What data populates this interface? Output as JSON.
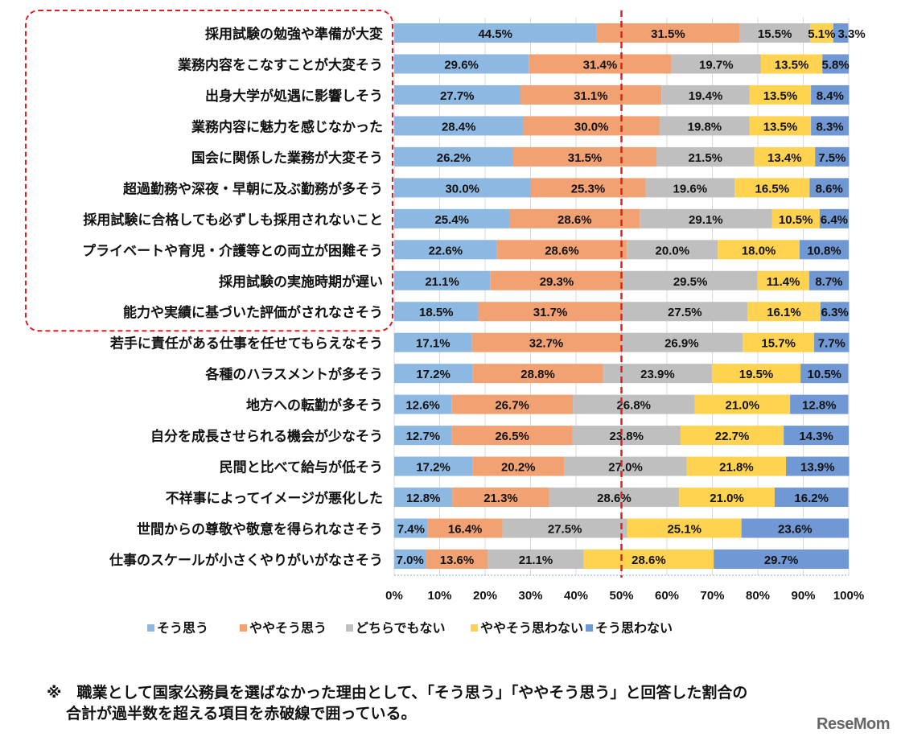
{
  "chart_data": {
    "type": "bar",
    "orientation": "horizontal",
    "stacked": "percent",
    "categories": [
      "採用試験の勉強や準備が大変",
      "業務内容をこなすことが大変そう",
      "出身大学が処遇に影響しそう",
      "業務内容に魅力を感じなかった",
      "国会に関係した業務が大変そう",
      "超過勤務や深夜・早朝に及ぶ勤務が多そう",
      "採用試験に合格しても必ずしも採用されないこと",
      "プライベートや育児・介護等との両立が困難そう",
      "採用試験の実施時期が遅い",
      "能力や実績に基づいた評価がされなさそう",
      "若手に責任がある仕事を任せてもらえなそう",
      "各種のハラスメントが多そう",
      "地方への転勤が多そう",
      "自分を成長させられる機会が少なそう",
      "民間と比べて給与が低そう",
      "不祥事によってイメージが悪化した",
      "世間からの尊敬や敬意を得られなさそう",
      "仕事のスケールが小さくやりがいがなさそう"
    ],
    "series": [
      {
        "name": "そう思う",
        "color": "#8cb8e2",
        "values": [
          44.5,
          29.6,
          27.7,
          28.4,
          26.2,
          30.0,
          25.4,
          22.6,
          21.1,
          18.5,
          17.1,
          17.2,
          12.6,
          12.7,
          17.2,
          12.8,
          7.4,
          7.0
        ]
      },
      {
        "name": "ややそう思う",
        "color": "#f2a272",
        "values": [
          31.5,
          31.4,
          31.1,
          30.0,
          31.5,
          25.3,
          28.6,
          28.6,
          29.3,
          31.7,
          32.7,
          28.8,
          26.7,
          26.5,
          20.2,
          21.3,
          16.4,
          13.6
        ]
      },
      {
        "name": "どちらでもない",
        "color": "#bfbfbf",
        "values": [
          15.5,
          19.7,
          19.4,
          19.8,
          21.5,
          19.6,
          29.1,
          20.0,
          29.5,
          27.5,
          26.9,
          23.9,
          26.8,
          23.8,
          27.0,
          28.6,
          27.5,
          21.1
        ]
      },
      {
        "name": "ややそう思わない",
        "color": "#ffd34f",
        "values": [
          5.1,
          13.5,
          13.5,
          13.5,
          13.4,
          16.5,
          10.5,
          18.0,
          11.4,
          16.1,
          15.7,
          19.5,
          21.0,
          22.7,
          21.8,
          21.0,
          25.1,
          28.6
        ]
      },
      {
        "name": "そう思わない",
        "color": "#7098d4",
        "values": [
          3.3,
          5.8,
          8.4,
          8.3,
          7.5,
          8.6,
          6.4,
          10.8,
          8.7,
          6.3,
          7.7,
          10.5,
          12.8,
          14.3,
          13.9,
          16.2,
          23.6,
          29.7
        ]
      }
    ],
    "xlim": [
      0,
      100
    ],
    "xticks": [
      "0%",
      "10%",
      "20%",
      "30%",
      "40%",
      "50%",
      "60%",
      "70%",
      "80%",
      "90%",
      "100%"
    ],
    "grid": true,
    "legend": "bottom",
    "reference_line": {
      "x": 50,
      "color": "#e02020",
      "style": "dashed"
    },
    "highlight_box": {
      "rows": [
        0,
        9
      ],
      "color": "#e02020",
      "style": "dashed"
    }
  },
  "footnote": {
    "line1": "※　職業として国家公務員を選ばなかった理由として、「そう思う」「ややそう思う」と回答した割合の",
    "line2": "合計が過半数を超える項目を赤破線で囲っている。"
  },
  "logo": "ReseMom"
}
